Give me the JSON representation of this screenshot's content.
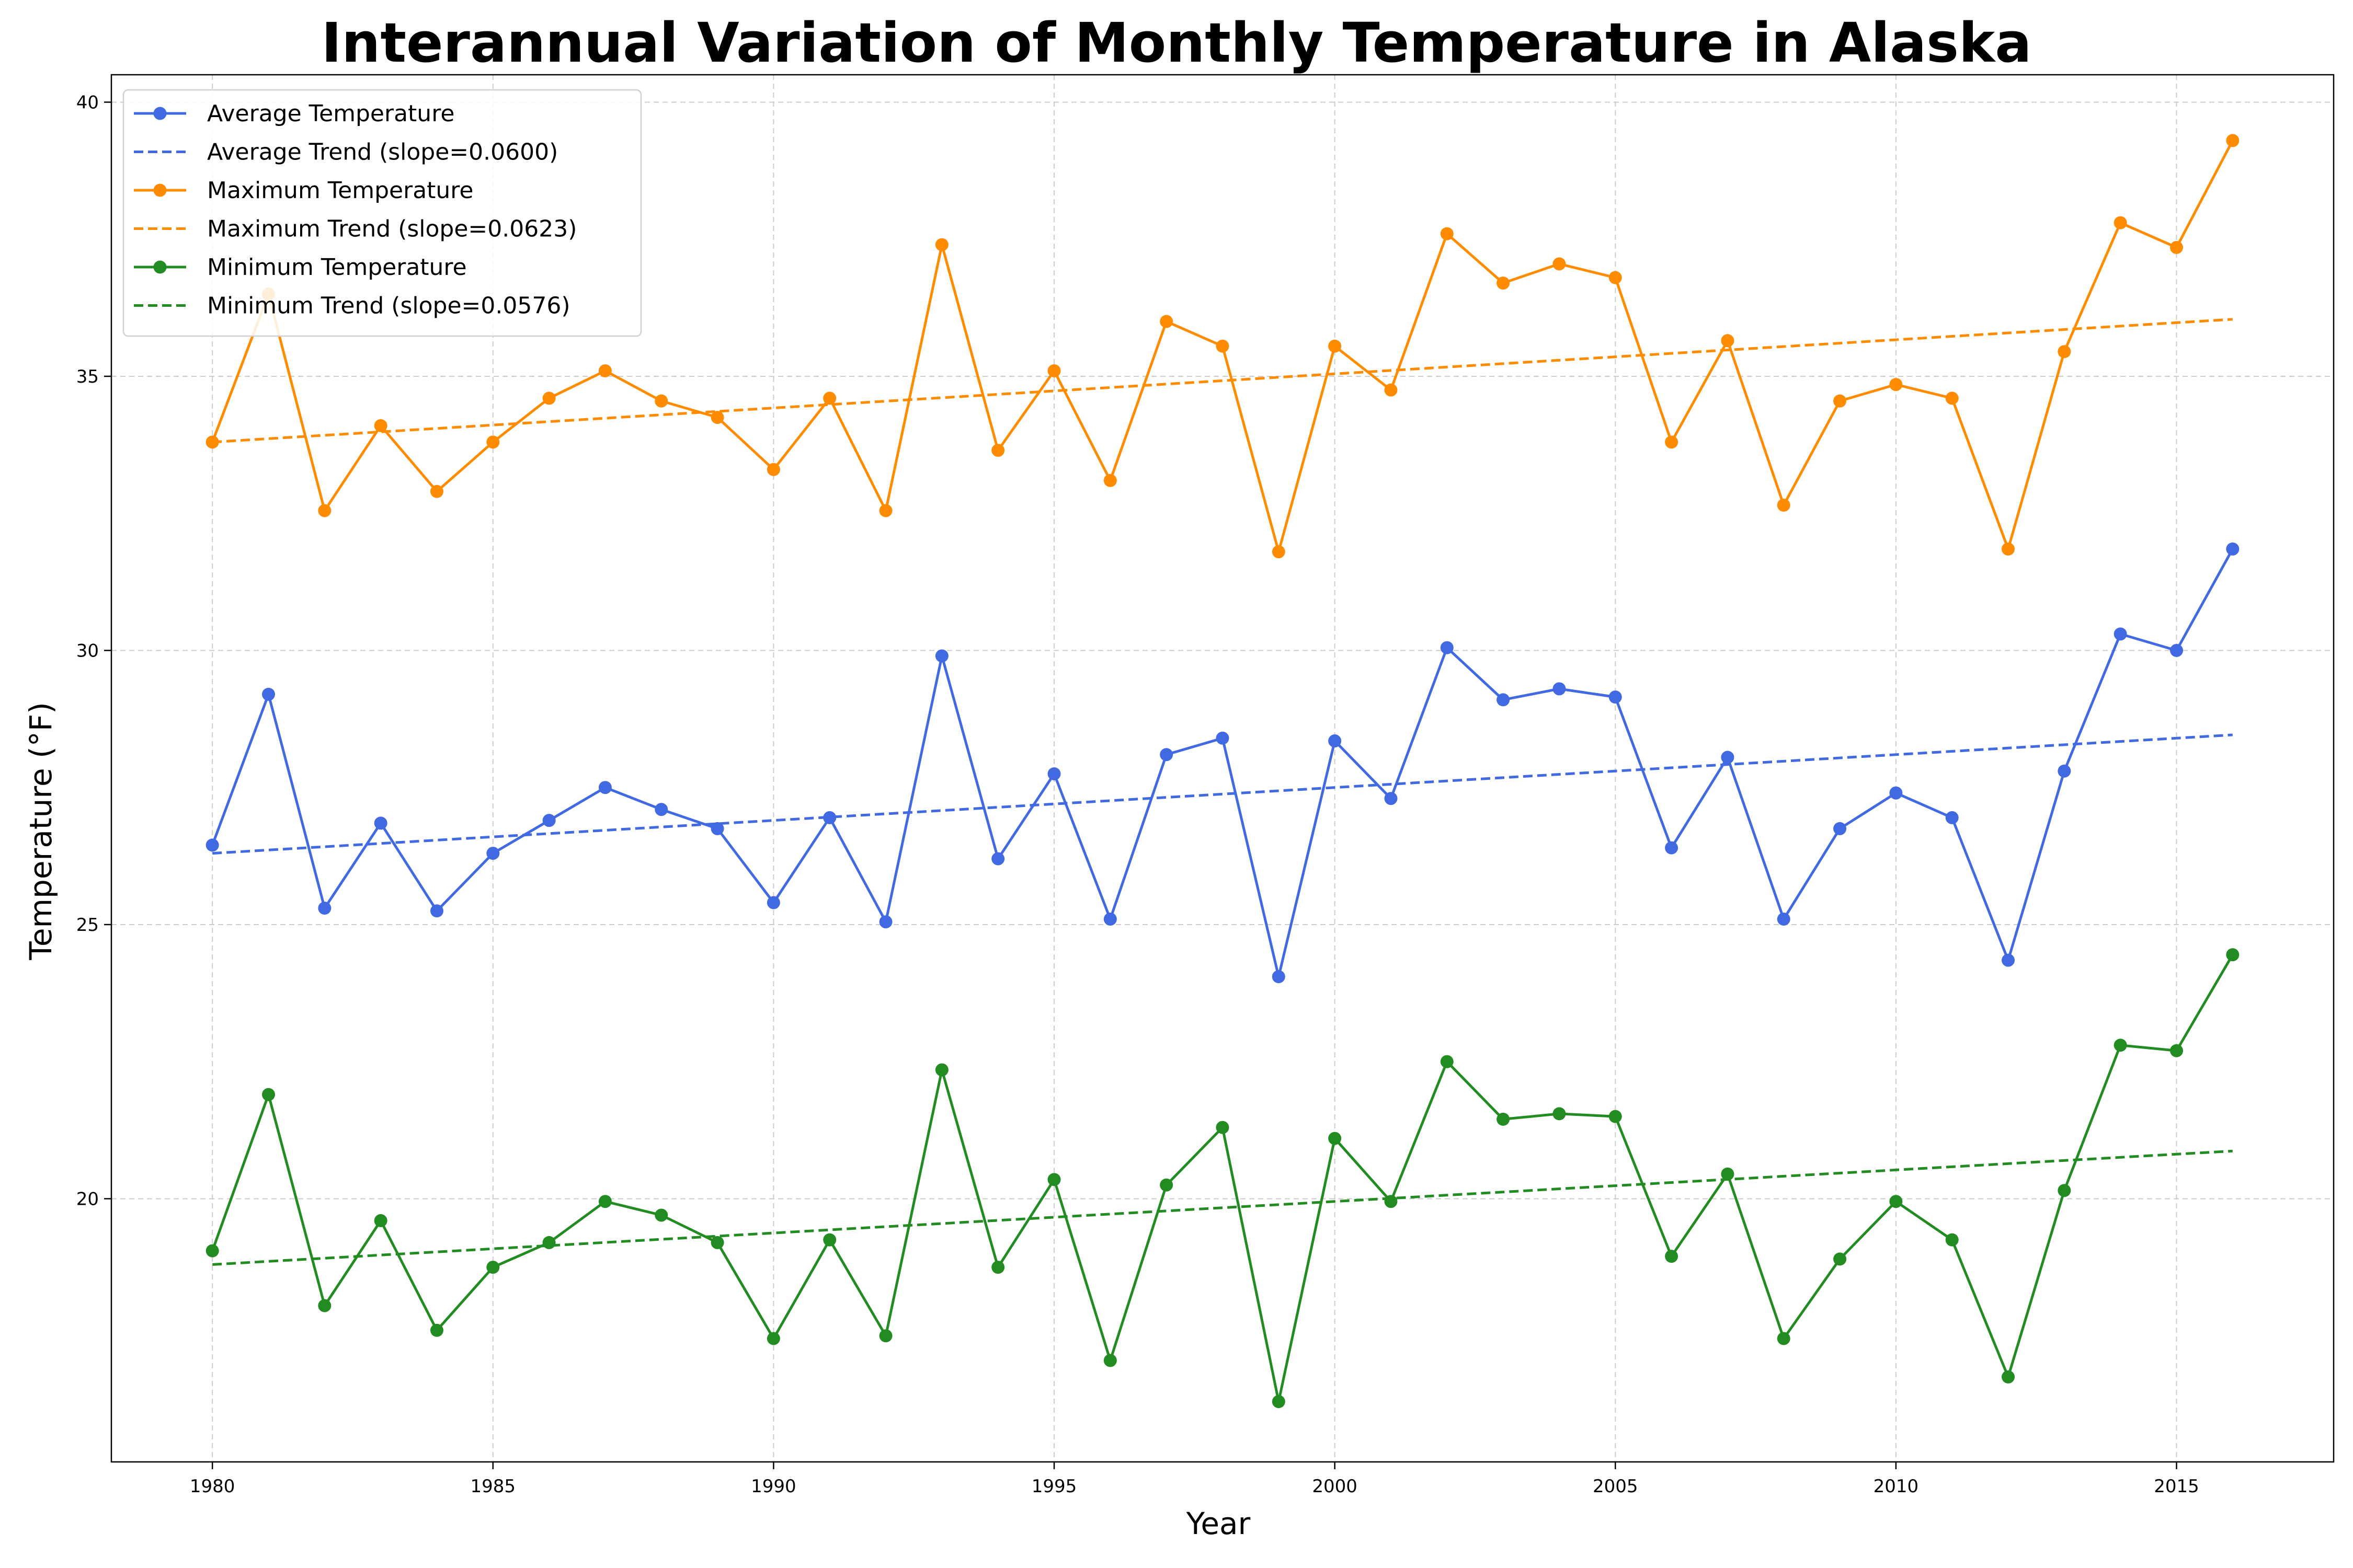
{
  "chart_data": {
    "type": "line",
    "title": "Interannual Variation of Monthly Temperature in Alaska",
    "xlabel": "Year",
    "ylabel": "Temperature (°F)",
    "xlim": [
      1978.2,
      2017.8
    ],
    "ylim": [
      15.2,
      40.5
    ],
    "xticks": [
      1980,
      1985,
      1990,
      1995,
      2000,
      2005,
      2010,
      2015
    ],
    "yticks": [
      20,
      25,
      30,
      35,
      40
    ],
    "grid": true,
    "legend_position": "top-left",
    "x": [
      1980,
      1981,
      1982,
      1983,
      1984,
      1985,
      1986,
      1987,
      1988,
      1989,
      1990,
      1991,
      1992,
      1993,
      1994,
      1995,
      1996,
      1997,
      1998,
      1999,
      2000,
      2001,
      2002,
      2003,
      2004,
      2005,
      2006,
      2007,
      2008,
      2009,
      2010,
      2011,
      2012,
      2013,
      2014,
      2015,
      2016
    ],
    "series": [
      {
        "name": "Average Temperature",
        "color": "#4169E1",
        "values": [
          26.45,
          29.2,
          25.3,
          26.85,
          25.25,
          26.3,
          26.9,
          27.5,
          27.1,
          26.75,
          25.4,
          26.95,
          25.05,
          29.9,
          26.2,
          27.75,
          25.1,
          28.1,
          28.4,
          24.05,
          28.35,
          27.3,
          30.05,
          29.1,
          29.3,
          29.15,
          26.4,
          28.05,
          25.1,
          26.75,
          27.4,
          26.95,
          24.35,
          27.8,
          30.3,
          30.0,
          31.85
        ]
      },
      {
        "name": "Maximum Temperature",
        "color": "#FF8C00",
        "values": [
          33.8,
          36.5,
          32.55,
          34.1,
          32.9,
          33.8,
          34.6,
          35.1,
          34.55,
          34.25,
          33.3,
          34.6,
          32.55,
          37.4,
          33.65,
          35.1,
          33.1,
          36.0,
          35.55,
          31.8,
          35.55,
          34.75,
          37.6,
          36.7,
          37.05,
          36.8,
          33.8,
          35.65,
          32.65,
          34.55,
          34.85,
          34.6,
          31.85,
          35.45,
          37.8,
          37.35,
          39.3
        ]
      },
      {
        "name": "Minimum Temperature",
        "color": "#228B22",
        "values": [
          19.05,
          21.9,
          18.05,
          19.6,
          17.6,
          18.75,
          19.2,
          19.95,
          19.7,
          19.2,
          17.45,
          19.25,
          17.5,
          22.35,
          18.75,
          20.35,
          17.05,
          20.25,
          21.3,
          16.3,
          21.1,
          19.95,
          22.5,
          21.45,
          21.55,
          21.5,
          18.95,
          20.45,
          17.45,
          18.9,
          19.95,
          19.25,
          16.75,
          20.15,
          22.8,
          22.7,
          24.45
        ]
      }
    ],
    "trends": [
      {
        "name": "Average Trend (slope=0.0600)",
        "color": "#4169E1",
        "x": [
          1980,
          2016
        ],
        "values": [
          26.3,
          28.46
        ]
      },
      {
        "name": "Maximum Trend (slope=0.0623)",
        "color": "#FF8C00",
        "x": [
          1980,
          2016
        ],
        "values": [
          33.8,
          36.04
        ]
      },
      {
        "name": "Minimum Trend (slope=0.0576)",
        "color": "#228B22",
        "x": [
          1980,
          2016
        ],
        "values": [
          18.8,
          20.87
        ]
      }
    ],
    "legend": [
      {
        "label": "Average Temperature",
        "style": "line-marker",
        "color": "#4169E1"
      },
      {
        "label": "Average Trend (slope=0.0600)",
        "style": "dashed",
        "color": "#4169E1"
      },
      {
        "label": "Maximum Temperature",
        "style": "line-marker",
        "color": "#FF8C00"
      },
      {
        "label": "Maximum Trend (slope=0.0623)",
        "style": "dashed",
        "color": "#FF8C00"
      },
      {
        "label": "Minimum Temperature",
        "style": "line-marker",
        "color": "#228B22"
      },
      {
        "label": "Minimum Trend (slope=0.0576)",
        "style": "dashed",
        "color": "#228B22"
      }
    ]
  }
}
